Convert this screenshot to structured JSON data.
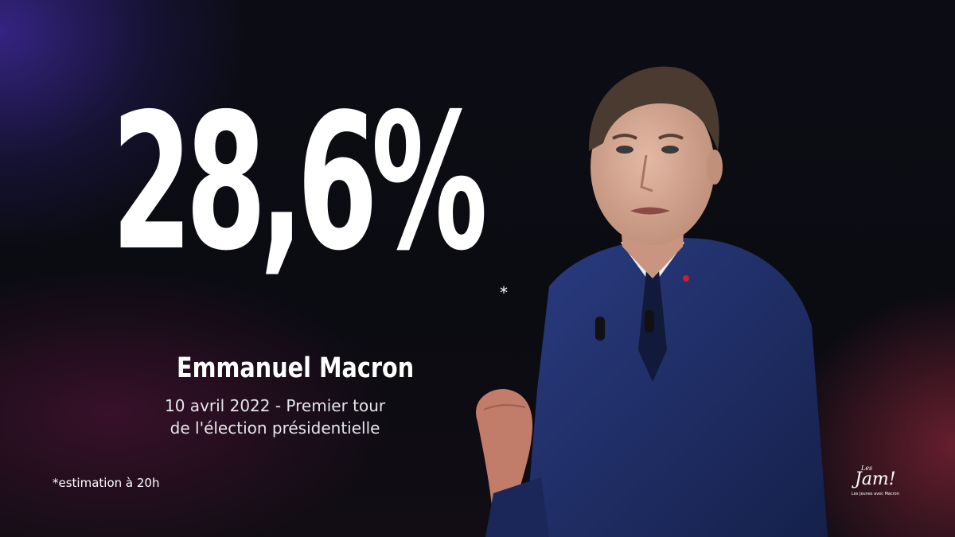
{
  "headline": {
    "percent": "28,6%",
    "asterisk": "*"
  },
  "candidate": {
    "name": "Emmanuel Macron",
    "line1": "10 avril 2022 - Premier tour",
    "line2": "de l'élection présidentielle"
  },
  "footnote": "*estimation à 20h",
  "logo": {
    "les": "Les",
    "jam": "Jam!",
    "tagline": "Les Jeunes avec Macron"
  },
  "colors": {
    "background": "#0b0b12",
    "text": "#ffffff",
    "suit": "#1f2f6b",
    "accent_glow_left": "#3c2896",
    "accent_glow_right": "#96283c"
  },
  "icons": {
    "photo": "portrait-photo",
    "brand": "jam-logo"
  }
}
